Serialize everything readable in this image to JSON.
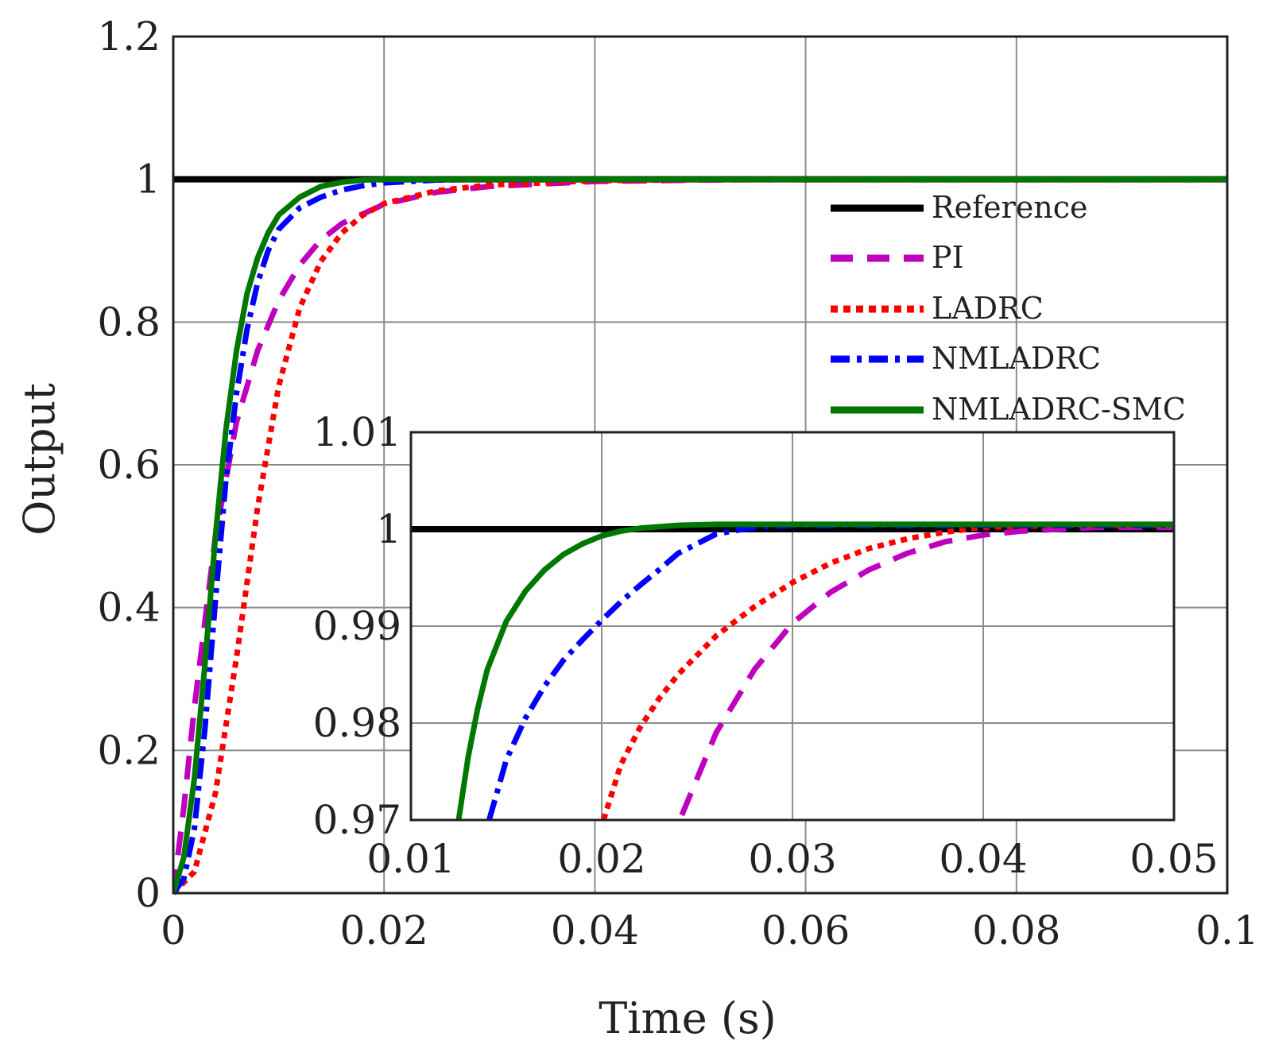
{
  "chart_data": [
    {
      "name": "main",
      "type": "line",
      "xlabel": "Time (s)",
      "ylabel": "Output",
      "xlim": [
        0,
        0.1
      ],
      "ylim": [
        0,
        1.2
      ],
      "xticks": [
        0,
        0.02,
        0.04,
        0.06,
        0.08,
        0.1
      ],
      "xtick_labels": [
        "0",
        "0.02",
        "0.04",
        "0.06",
        "0.08",
        "0.1"
      ],
      "yticks": [
        0,
        0.2,
        0.4,
        0.6,
        0.8,
        1,
        1.2
      ],
      "ytick_labels": [
        "0",
        "0.2",
        "0.4",
        "0.6",
        "0.8",
        "1",
        "1.2"
      ],
      "grid": true,
      "legend_position": "top-right",
      "series": [
        {
          "name": "Reference",
          "color": "#000000",
          "style": "solid",
          "x": [
            0,
            0.1
          ],
          "y": [
            1,
            1
          ]
        },
        {
          "name": "PI",
          "color": "#bf00bf",
          "style": "dashed",
          "x": [
            0,
            0.001,
            0.002,
            0.003,
            0.004,
            0.006,
            0.008,
            0.01,
            0.012,
            0.014,
            0.016,
            0.02,
            0.025,
            0.03,
            0.04,
            0.05,
            0.06,
            0.08,
            0.1
          ],
          "y": [
            0,
            0.12,
            0.26,
            0.38,
            0.5,
            0.66,
            0.76,
            0.83,
            0.88,
            0.915,
            0.938,
            0.965,
            0.982,
            0.99,
            0.997,
            0.999,
            1,
            1,
            1
          ]
        },
        {
          "name": "LADRC",
          "color": "#ff0000",
          "style": "dotted",
          "x": [
            0,
            0.002,
            0.004,
            0.006,
            0.008,
            0.01,
            0.012,
            0.014,
            0.016,
            0.018,
            0.02,
            0.025,
            0.03,
            0.04,
            0.05,
            0.06,
            0.08,
            0.1
          ],
          "y": [
            0,
            0.03,
            0.14,
            0.33,
            0.54,
            0.71,
            0.82,
            0.885,
            0.925,
            0.95,
            0.966,
            0.984,
            0.992,
            0.998,
            0.9995,
            1,
            1,
            1
          ]
        },
        {
          "name": "NMLADRC",
          "color": "#0000ff",
          "style": "dashdot",
          "x": [
            0,
            0.001,
            0.002,
            0.003,
            0.004,
            0.005,
            0.006,
            0.007,
            0.008,
            0.009,
            0.01,
            0.012,
            0.014,
            0.016,
            0.018,
            0.02,
            0.025,
            0.03,
            0.04,
            0.06,
            0.1
          ],
          "y": [
            0,
            0.02,
            0.09,
            0.23,
            0.41,
            0.58,
            0.7,
            0.79,
            0.855,
            0.9,
            0.93,
            0.96,
            0.975,
            0.985,
            0.991,
            0.995,
            0.999,
            1,
            1,
            1,
            1
          ]
        },
        {
          "name": "NMLADRC-SMC",
          "color": "#007800",
          "style": "solid",
          "x": [
            0,
            0.001,
            0.002,
            0.003,
            0.004,
            0.005,
            0.006,
            0.007,
            0.008,
            0.009,
            0.01,
            0.012,
            0.014,
            0.016,
            0.018,
            0.02,
            0.025,
            0.03,
            0.06,
            0.1
          ],
          "y": [
            0,
            0.05,
            0.16,
            0.32,
            0.5,
            0.65,
            0.76,
            0.84,
            0.89,
            0.925,
            0.95,
            0.975,
            0.99,
            0.996,
            0.999,
            1,
            1,
            1,
            1,
            1
          ]
        }
      ]
    },
    {
      "name": "inset",
      "type": "line",
      "xlim": [
        0.01,
        0.05
      ],
      "ylim": [
        0.97,
        1.01
      ],
      "xticks": [
        0.01,
        0.02,
        0.03,
        0.04,
        0.05
      ],
      "xtick_labels": [
        "0.01",
        "0.02",
        "0.03",
        "0.04",
        "0.05"
      ],
      "yticks": [
        0.97,
        0.98,
        0.99,
        1,
        1.01
      ],
      "ytick_labels": [
        "0.97",
        "0.98",
        "0.99",
        "1",
        "1.01"
      ],
      "grid": true,
      "series": [
        {
          "name": "Reference",
          "color": "#000000",
          "style": "solid",
          "x": [
            0.01,
            0.05
          ],
          "y": [
            1,
            1
          ]
        },
        {
          "name": "PI",
          "color": "#bf00bf",
          "style": "dashed",
          "x": [
            0.0242,
            0.026,
            0.028,
            0.03,
            0.032,
            0.034,
            0.036,
            0.038,
            0.04,
            0.042,
            0.044,
            0.046,
            0.048,
            0.05
          ],
          "y": [
            0.9705,
            0.979,
            0.9855,
            0.9903,
            0.9935,
            0.9958,
            0.9975,
            0.9987,
            0.9994,
            0.9998,
            1.0,
            1.0002,
            1.0002,
            1.0002
          ]
        },
        {
          "name": "LADRC",
          "color": "#ff0000",
          "style": "dotted",
          "x": [
            0.0201,
            0.021,
            0.022,
            0.023,
            0.024,
            0.026,
            0.028,
            0.03,
            0.032,
            0.034,
            0.036,
            0.038,
            0.04,
            0.042,
            0.045,
            0.05
          ],
          "y": [
            0.97,
            0.9757,
            0.9795,
            0.9825,
            0.985,
            0.989,
            0.992,
            0.9945,
            0.9965,
            0.998,
            0.999,
            0.9997,
            1.0002,
            1.0003,
            1.0004,
            1.0004
          ]
        },
        {
          "name": "NMLADRC",
          "color": "#0000ff",
          "style": "dashdot",
          "x": [
            0.0141,
            0.015,
            0.016,
            0.017,
            0.018,
            0.019,
            0.02,
            0.021,
            0.022,
            0.023,
            0.024,
            0.026,
            0.028,
            0.03,
            0.035,
            0.05
          ],
          "y": [
            0.97,
            0.9762,
            0.9805,
            0.9838,
            0.9865,
            0.9886,
            0.9906,
            0.9925,
            0.9942,
            0.9958,
            0.9975,
            0.9995,
            1.0002,
            1.0004,
            1.0004,
            1.0004
          ]
        },
        {
          "name": "NMLADRC-SMC",
          "color": "#007800",
          "style": "solid",
          "x": [
            0.0125,
            0.013,
            0.0135,
            0.014,
            0.015,
            0.016,
            0.017,
            0.018,
            0.019,
            0.02,
            0.021,
            0.022,
            0.024,
            0.026,
            0.03,
            0.05
          ],
          "y": [
            0.97,
            0.9765,
            0.9815,
            0.9855,
            0.9905,
            0.9936,
            0.9958,
            0.9974,
            0.9985,
            0.9993,
            0.9998,
            1.0001,
            1.0004,
            1.0005,
            1.0005,
            1.0005
          ]
        }
      ]
    }
  ]
}
